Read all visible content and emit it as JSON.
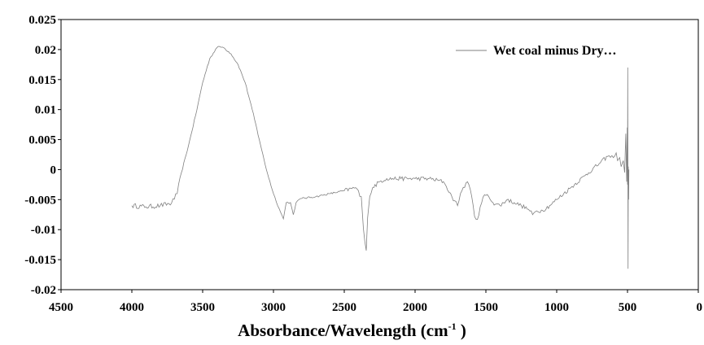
{
  "chart_data": {
    "type": "line",
    "title": "",
    "xlabel": {
      "main": "Absorbance/Wavelength (cm",
      "superscript": "-1",
      "suffix": " )"
    },
    "ylabel": "",
    "xlim": [
      4500,
      0
    ],
    "ylim": [
      -0.02,
      0.025
    ],
    "x_reversed": true,
    "grid": false,
    "legend_position": "top-right",
    "x_ticks": [
      {
        "value": 4500,
        "label": "4500"
      },
      {
        "value": 4000,
        "label": "4000"
      },
      {
        "value": 3500,
        "label": "3500"
      },
      {
        "value": 3000,
        "label": "3000"
      },
      {
        "value": 2500,
        "label": "2500"
      },
      {
        "value": 2000,
        "label": "2000"
      },
      {
        "value": 1500,
        "label": "1500"
      },
      {
        "value": 1000,
        "label": "1000"
      },
      {
        "value": 500,
        "label": "500"
      },
      {
        "value": 0,
        "label": "0"
      }
    ],
    "y_ticks": [
      {
        "value": 0.025,
        "label": "0.025"
      },
      {
        "value": 0.02,
        "label": "0.02"
      },
      {
        "value": 0.015,
        "label": "0.015"
      },
      {
        "value": 0.01,
        "label": "0.01"
      },
      {
        "value": 0.005,
        "label": "0.005"
      },
      {
        "value": 0,
        "label": "0"
      },
      {
        "value": -0.005,
        "label": "-0.005"
      },
      {
        "value": -0.01,
        "label": "-0.01"
      },
      {
        "value": -0.015,
        "label": "-0.015"
      },
      {
        "value": -0.02,
        "label": "-0.02"
      }
    ],
    "series": [
      {
        "name": "Wet coal minus Dry…",
        "color": "#808080",
        "x": [
          4000,
          3900,
          3800,
          3720,
          3680,
          3650,
          3600,
          3550,
          3500,
          3450,
          3400,
          3380,
          3350,
          3300,
          3250,
          3200,
          3150,
          3100,
          3050,
          3000,
          2960,
          2930,
          2910,
          2880,
          2860,
          2840,
          2820,
          2800,
          2700,
          2600,
          2500,
          2420,
          2380,
          2365,
          2345,
          2335,
          2320,
          2300,
          2250,
          2200,
          2100,
          2000,
          1900,
          1800,
          1780,
          1740,
          1700,
          1680,
          1640,
          1620,
          1600,
          1580,
          1560,
          1540,
          1510,
          1480,
          1450,
          1400,
          1350,
          1300,
          1250,
          1200,
          1170,
          1150,
          1100,
          1050,
          1000,
          900,
          800,
          700,
          640,
          600,
          580,
          570,
          555,
          545,
          530,
          520,
          512,
          506,
          502,
          500,
          498,
          496,
          494,
          492,
          490
        ],
        "y": [
          -0.006,
          -0.0062,
          -0.006,
          -0.0056,
          -0.004,
          -0.0005,
          0.004,
          0.009,
          0.0145,
          0.0185,
          0.0203,
          0.0205,
          0.0203,
          0.0193,
          0.0175,
          0.0145,
          0.01,
          0.005,
          0.0,
          -0.004,
          -0.0065,
          -0.0082,
          -0.0055,
          -0.0055,
          -0.0075,
          -0.0055,
          -0.005,
          -0.0048,
          -0.0045,
          -0.004,
          -0.0035,
          -0.003,
          -0.0045,
          -0.0098,
          -0.0135,
          -0.008,
          -0.0045,
          -0.003,
          -0.002,
          -0.0015,
          -0.0015,
          -0.0015,
          -0.0015,
          -0.002,
          -0.0028,
          -0.0045,
          -0.006,
          -0.004,
          -0.0022,
          -0.0025,
          -0.0045,
          -0.0078,
          -0.0083,
          -0.0062,
          -0.0042,
          -0.0045,
          -0.0055,
          -0.006,
          -0.005,
          -0.0055,
          -0.006,
          -0.0066,
          -0.0075,
          -0.007,
          -0.0068,
          -0.006,
          -0.005,
          -0.003,
          -0.001,
          0.001,
          0.0022,
          0.002,
          0.0028,
          0.0015,
          0.002,
          0.0005,
          0.0015,
          -0.0005,
          0.006,
          -0.002,
          0.007,
          -0.0025,
          0.017,
          -0.0165,
          0.0005,
          -0.005,
          0.0
        ]
      }
    ]
  }
}
